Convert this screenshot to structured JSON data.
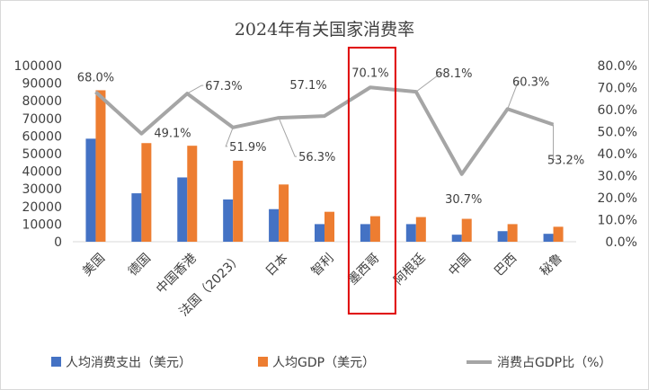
{
  "chart_data": {
    "type": "bar",
    "title": "2024年有关国家消费率",
    "categories": [
      "美国",
      "德国",
      "中国香港",
      "法国（2023）",
      "日本",
      "智利",
      "墨西哥",
      "阿根廷",
      "中国",
      "巴西",
      "秘鲁"
    ],
    "series": [
      {
        "name": "人均消费支出（美元）",
        "kind": "bar",
        "axis": "left",
        "color": "#4472C4",
        "values": [
          58500,
          27500,
          36500,
          24000,
          18500,
          10000,
          10000,
          10000,
          4000,
          6000,
          4500
        ]
      },
      {
        "name": "人均GDP（美元）",
        "kind": "bar",
        "axis": "left",
        "color": "#ED7D31",
        "values": [
          86000,
          56000,
          54500,
          46000,
          32500,
          17000,
          14500,
          14000,
          13000,
          10000,
          8500
        ]
      },
      {
        "name": "消费占GDP比（%）",
        "kind": "line",
        "axis": "right",
        "color": "#A5A5A5",
        "values": [
          68.0,
          49.1,
          67.3,
          51.9,
          56.3,
          57.1,
          70.1,
          68.1,
          30.7,
          60.3,
          53.2
        ],
        "labels": [
          "68.0%",
          "49.1%",
          "67.3%",
          "51.9%",
          "56.3%",
          "57.1%",
          "70.1%",
          "68.1%",
          "30.7%",
          "60.3%",
          "53.2%"
        ]
      }
    ],
    "y_left": {
      "min": 0,
      "max": 100000,
      "ticks": [
        "0",
        "10000",
        "20000",
        "30000",
        "40000",
        "50000",
        "60000",
        "70000",
        "80000",
        "90000",
        "100000"
      ]
    },
    "y_right": {
      "min": 0,
      "max": 80,
      "ticks": [
        "0.0%",
        "10.0%",
        "20.0%",
        "30.0%",
        "40.0%",
        "50.0%",
        "60.0%",
        "70.0%",
        "80.0%"
      ]
    },
    "grid": false,
    "legend": "bottom",
    "highlight": {
      "category": "墨西哥",
      "color": "#E00000"
    }
  }
}
